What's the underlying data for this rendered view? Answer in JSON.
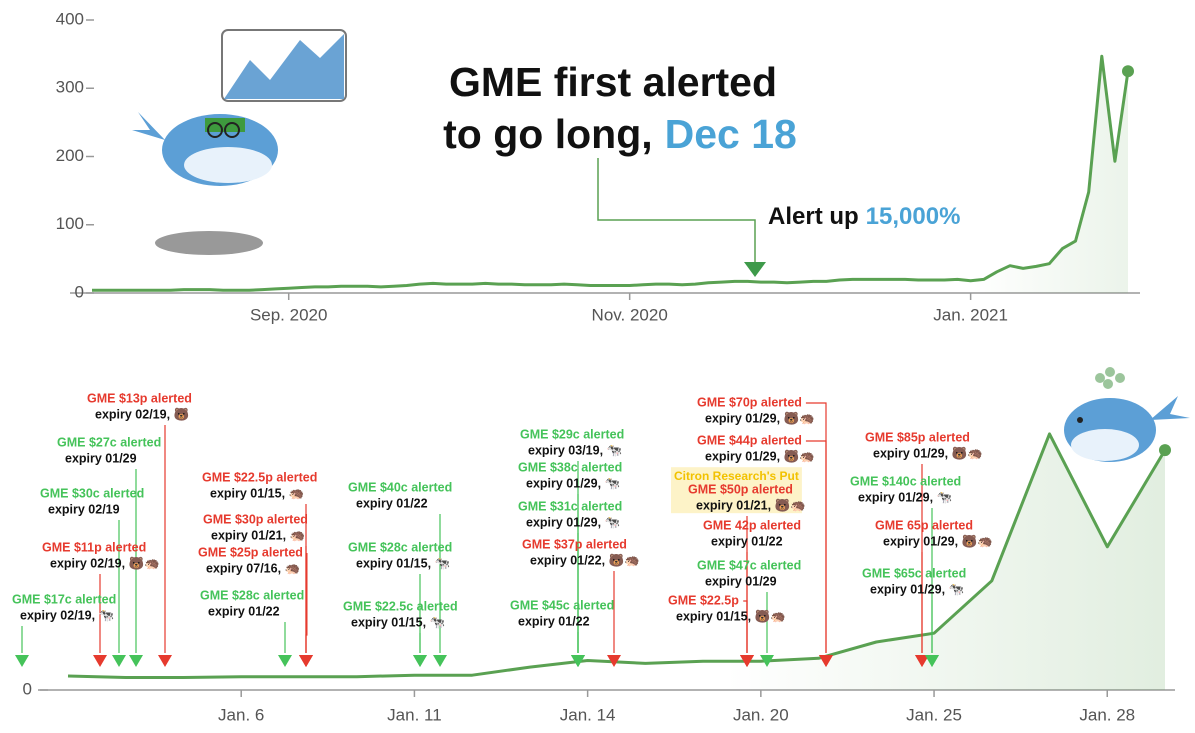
{
  "chart_data": [
    {
      "type": "line",
      "categories": [
        null,
        null,
        null,
        null,
        null,
        null,
        null,
        null,
        null,
        null,
        null,
        null,
        null,
        null,
        null,
        "Sep. 2020",
        null,
        null,
        null,
        null,
        null,
        null,
        null,
        null,
        null,
        null,
        null,
        null,
        null,
        null,
        null,
        null,
        null,
        null,
        null,
        null,
        null,
        null,
        null,
        null,
        null,
        "Nov. 2020",
        null,
        null,
        null,
        null,
        null,
        null,
        null,
        null,
        null,
        null,
        null,
        null,
        null,
        null,
        null,
        null,
        null,
        null,
        null,
        null,
        null,
        null,
        null,
        null,
        null,
        "Jan. 2021",
        null,
        null,
        null,
        null,
        null,
        null,
        null,
        null,
        null,
        null,
        null,
        null
      ],
      "values": [
        4,
        4,
        4,
        4,
        4,
        4,
        4,
        5,
        5,
        5,
        4,
        4,
        4,
        5,
        6,
        7,
        8,
        9,
        9,
        10,
        10,
        10,
        9,
        10,
        11,
        13,
        14,
        13,
        13,
        13,
        14,
        13,
        13,
        12,
        12,
        12,
        13,
        12,
        11,
        11,
        11,
        11,
        12,
        13,
        13,
        12,
        13,
        15,
        16,
        17,
        17,
        16,
        16,
        15,
        16,
        17,
        17,
        19,
        20,
        20,
        20,
        20,
        20,
        19,
        19,
        19,
        20,
        18,
        20,
        31,
        40,
        36,
        39,
        43,
        65,
        76,
        148,
        347,
        193,
        325
      ],
      "color": "#5aa152",
      "ylim": [
        0,
        400
      ],
      "yticks": [
        0,
        100,
        200,
        300,
        400
      ],
      "headline_line1": "GME first alerted",
      "headline_line2": "to go long,",
      "headline_date": "Dec 18",
      "callout_text": "Alert up",
      "callout_value": "15,000%"
    },
    {
      "type": "line",
      "categories": [
        null,
        null,
        null,
        "Jan. 6",
        null,
        null,
        "Jan. 11",
        null,
        null,
        "Jan. 14",
        null,
        null,
        "Jan. 20",
        null,
        null,
        "Jan. 25",
        null,
        null,
        "Jan. 28",
        null
      ],
      "values": [
        19,
        17,
        17,
        18,
        18,
        18,
        20,
        20,
        31,
        40,
        36,
        39,
        39,
        43,
        65,
        77,
        148,
        347,
        194,
        325
      ],
      "color": "#5aa152",
      "ylim": [
        0,
        420
      ],
      "yticks": [
        0
      ],
      "alerts": [
        {
          "title": "GME $13p alerted",
          "detail": "expiry 02/19, 🐻",
          "color": "#e63a2e"
        },
        {
          "title": "GME $27c alerted",
          "detail": "expiry 01/29",
          "color": "#45c35a"
        },
        {
          "title": "GME $30c alerted",
          "detail": "expiry 02/19",
          "color": "#45c35a"
        },
        {
          "title": "GME $11p alerted",
          "detail": "expiry 02/19, 🐻🦔",
          "color": "#e63a2e"
        },
        {
          "title": "GME $17c alerted",
          "detail": "expiry 02/19, 🐄",
          "color": "#45c35a"
        },
        {
          "title": "GME $22.5p alerted",
          "detail": "expiry 01/15, 🦔",
          "color": "#e63a2e"
        },
        {
          "title": "GME $30p alerted",
          "detail": "expiry 01/21, 🦔",
          "color": "#e63a2e"
        },
        {
          "title": "GME $25p alerted",
          "detail": "expiry 07/16, 🦔",
          "color": "#e63a2e"
        },
        {
          "title": "GME $28c alerted",
          "detail": "expiry 01/22",
          "color": "#45c35a"
        },
        {
          "title": "GME $40c alerted",
          "detail": "expiry 01/22",
          "color": "#45c35a"
        },
        {
          "title": "GME $28c alerted",
          "detail": "expiry 01/15, 🐄",
          "color": "#45c35a"
        },
        {
          "title": "GME $22.5c alerted",
          "detail": "expiry 01/15, 🐄",
          "color": "#45c35a"
        },
        {
          "title": "GME $29c alerted",
          "detail": "expiry 03/19, 🐄",
          "color": "#45c35a"
        },
        {
          "title": "GME $38c alerted",
          "detail": "expiry 01/29, 🐄",
          "color": "#45c35a"
        },
        {
          "title": "GME $31c alerted",
          "detail": "expiry 01/29, 🐄",
          "color": "#45c35a"
        },
        {
          "title": "GME $37p alerted",
          "detail": "expiry 01/22, 🐻🦔",
          "color": "#e63a2e"
        },
        {
          "title": "GME $45c alerted",
          "detail": "expiry 01/22",
          "color": "#45c35a"
        },
        {
          "title": "GME $70p alerted",
          "detail": "expiry 01/29, 🐻🦔",
          "color": "#e63a2e"
        },
        {
          "title": "GME $44p alerted",
          "detail": "expiry 01/29, 🐻🦔",
          "color": "#e63a2e"
        },
        {
          "title": "GME $50p alerted",
          "detail": "expiry 01/21, 🐻🦔",
          "color": "#e63a2e",
          "note": "Citron Research's Put"
        },
        {
          "title": "GME 42p alerted",
          "detail": "expiry 01/22",
          "color": "#e63a2e"
        },
        {
          "title": "GME $47c alerted",
          "detail": "expiry 01/29",
          "color": "#45c35a"
        },
        {
          "title": "GME $22.5p",
          "detail": "expiry 01/15, 🐻🦔",
          "color": "#e63a2e"
        },
        {
          "title": "GME $85p alerted",
          "detail": "expiry 01/29, 🐻🦔",
          "color": "#e63a2e"
        },
        {
          "title": "GME $140c alerted",
          "detail": "expiry 01/29, 🐄",
          "color": "#45c35a"
        },
        {
          "title": "GME 65p alerted",
          "detail": "expiry 01/29, 🐻🦔",
          "color": "#e63a2e"
        },
        {
          "title": "GME $65c alerted",
          "detail": "expiry 01/29, 🐄",
          "color": "#45c35a"
        }
      ]
    }
  ]
}
